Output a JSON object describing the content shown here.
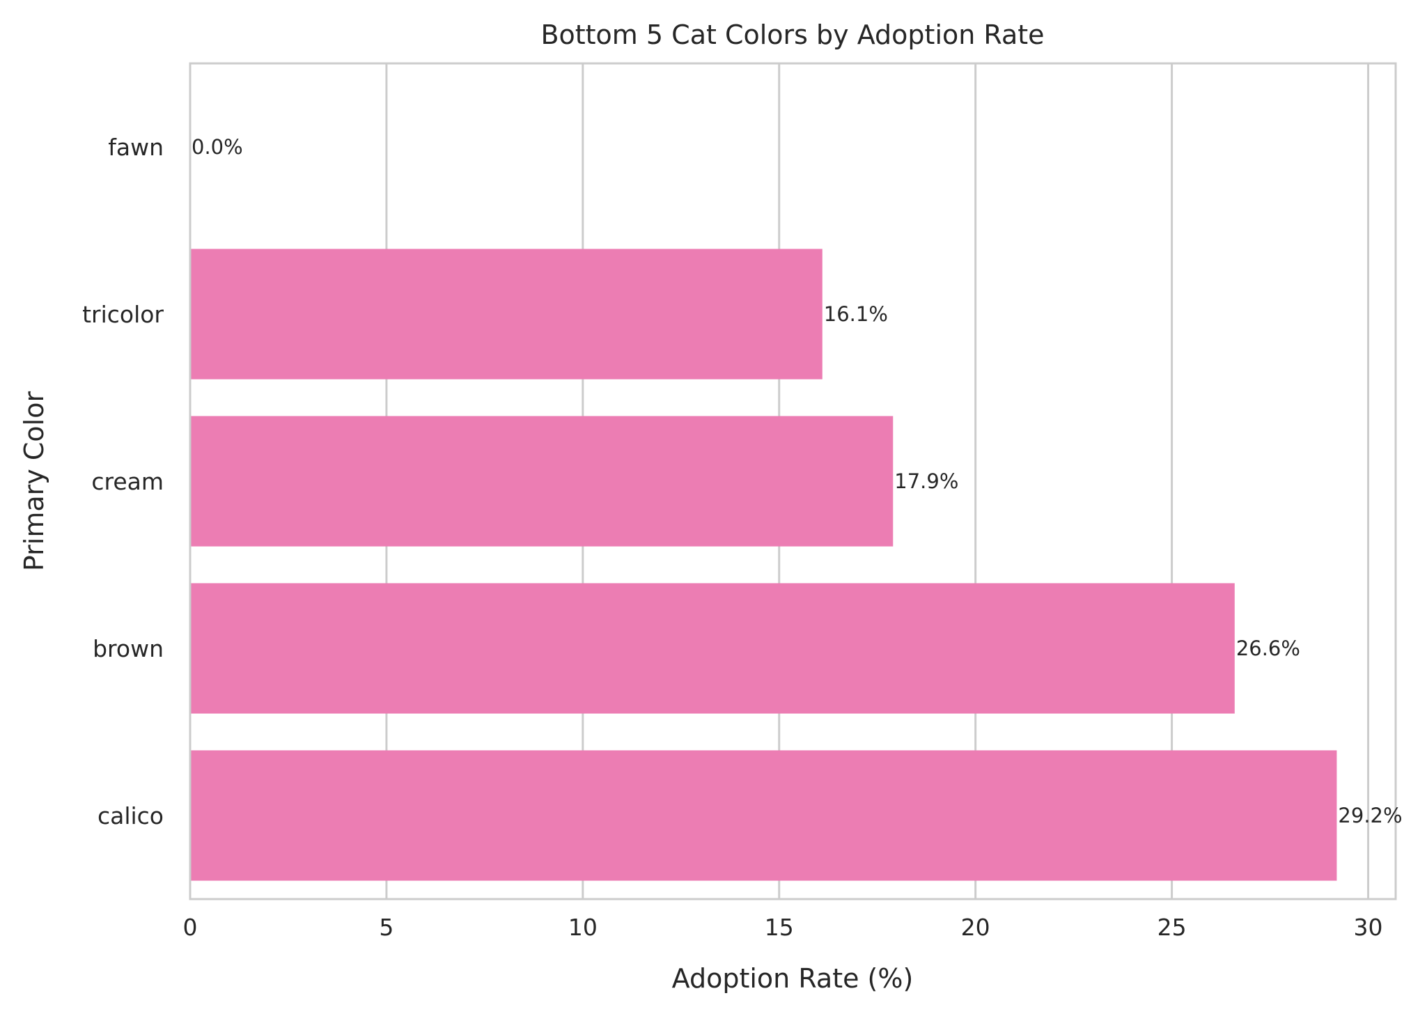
{
  "chart_data": {
    "type": "bar",
    "orientation": "horizontal",
    "title": "Bottom 5 Cat Colors by Adoption Rate",
    "xlabel": "Adoption Rate (%)",
    "ylabel": "Primary Color",
    "categories": [
      "fawn",
      "tricolor",
      "cream",
      "brown",
      "calico"
    ],
    "values": [
      0.0,
      16.1,
      17.9,
      26.6,
      29.2
    ],
    "data_labels": [
      "0.0%",
      "16.1%",
      "17.9%",
      "26.6%",
      "29.2%"
    ],
    "xlim": [
      0,
      30.7
    ],
    "xticks": [
      0,
      5,
      10,
      15,
      20,
      25,
      30
    ],
    "xtick_labels": [
      "0",
      "5",
      "10",
      "15",
      "20",
      "25",
      "30"
    ],
    "grid": true,
    "bar_color": "#ec7db3",
    "grid_color": "#cccccc",
    "spine_color": "#cccccc"
  }
}
